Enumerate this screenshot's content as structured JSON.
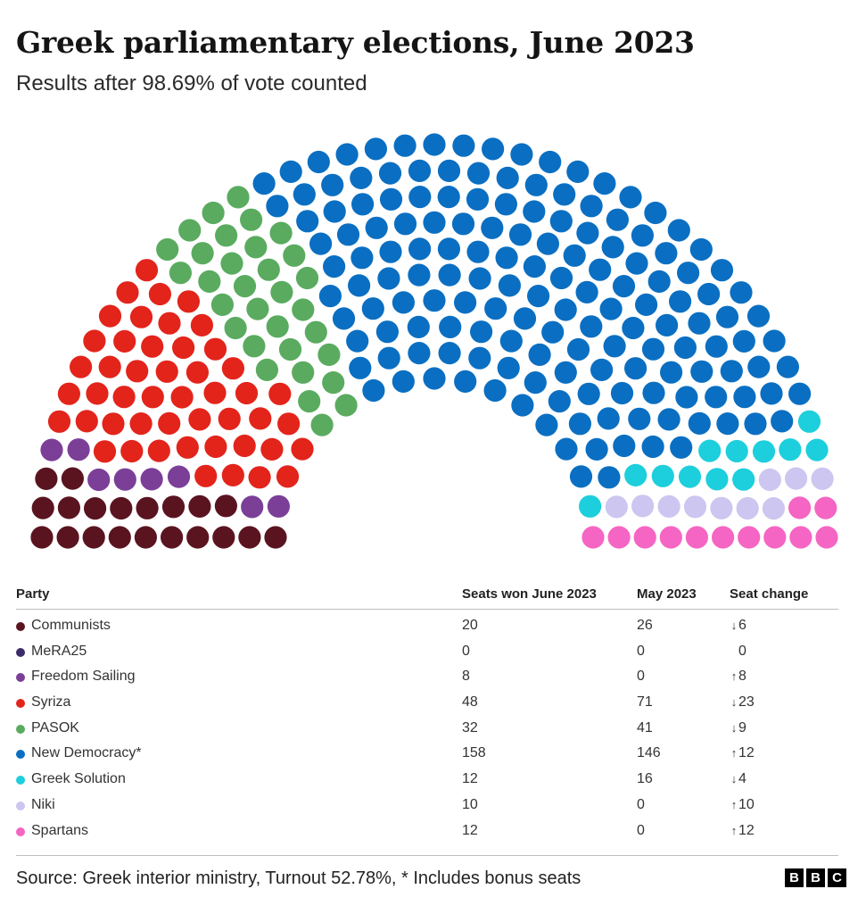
{
  "title": "Greek parliamentary elections, June 2023",
  "subtitle": "Results after 98.69% of vote counted",
  "chart_data": {
    "type": "parliament",
    "total_seats": 300,
    "parties": [
      {
        "name": "Communists",
        "seats": 20,
        "may_2023": 26,
        "change": "6",
        "direction": "down",
        "color": "#5a1420"
      },
      {
        "name": "MeRA25",
        "seats": 0,
        "may_2023": 0,
        "change": "0",
        "direction": "none",
        "color": "#3d2b6b"
      },
      {
        "name": "Freedom Sailing",
        "seats": 8,
        "may_2023": 0,
        "change": "8",
        "direction": "up",
        "color": "#7b3f98"
      },
      {
        "name": "Syriza",
        "seats": 48,
        "may_2023": 71,
        "change": "23",
        "direction": "down",
        "color": "#e3241b"
      },
      {
        "name": "PASOK",
        "seats": 32,
        "may_2023": 41,
        "change": "9",
        "direction": "down",
        "color": "#5aab5f"
      },
      {
        "name": "New Democracy*",
        "seats": 158,
        "may_2023": 146,
        "change": "12",
        "direction": "up",
        "color": "#0a6fc2"
      },
      {
        "name": "Greek Solution",
        "seats": 12,
        "may_2023": 16,
        "change": "4",
        "direction": "down",
        "color": "#1dcfdc"
      },
      {
        "name": "Niki",
        "seats": 10,
        "may_2023": 0,
        "change": "10",
        "direction": "up",
        "color": "#cdc6f0"
      },
      {
        "name": "Spartans",
        "seats": 12,
        "may_2023": 0,
        "change": "12",
        "direction": "up",
        "color": "#f565c3"
      }
    ]
  },
  "table": {
    "header_party": "Party",
    "header_june": "Seats won June 2023",
    "header_may": "May 2023",
    "header_change": "Seat change"
  },
  "footer": {
    "source": "Source: Greek interior ministry, Turnout 52.78%, * Includes bonus seats",
    "logo": [
      "B",
      "B",
      "C"
    ]
  }
}
